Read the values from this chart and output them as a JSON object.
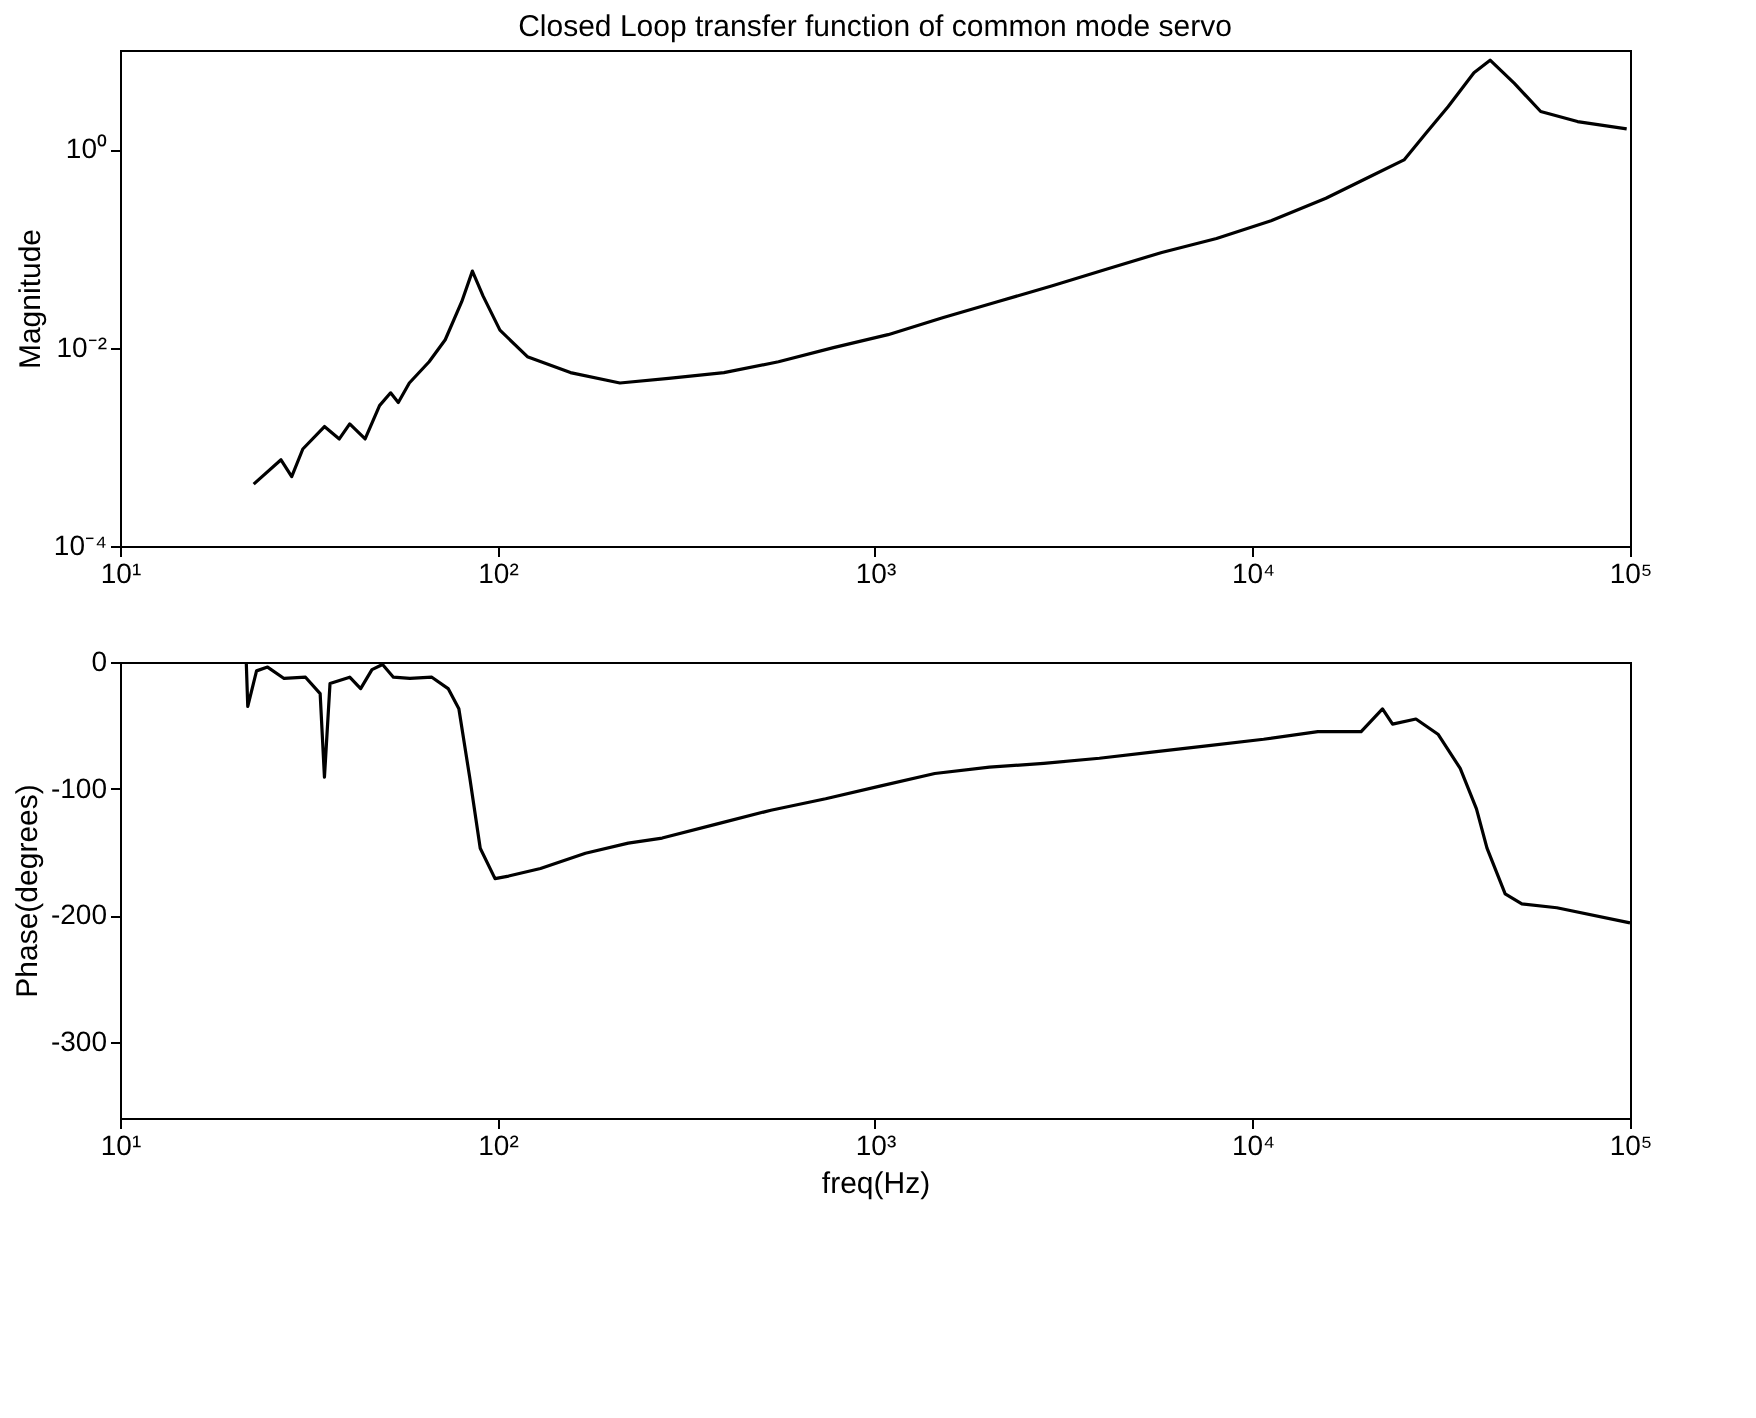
{
  "chart_data": [
    {
      "type": "line",
      "title": "Closed Loop transfer function of common mode servo",
      "ylabel": "Magnitude",
      "log": "xy",
      "grid": false,
      "marker": "none",
      "line_style": "solid",
      "xlim": [
        10,
        100000
      ],
      "xticks": [
        {
          "value": 10,
          "label": "10¹"
        },
        {
          "value": 100,
          "label": "10²"
        },
        {
          "value": 1000,
          "label": "10³"
        },
        {
          "value": 10000,
          "label": "10⁴"
        },
        {
          "value": 100000,
          "label": "10⁵"
        }
      ],
      "ylim": [
        0.0001,
        10
      ],
      "yticks": [
        {
          "value": 0.0001,
          "label": "10⁻⁴"
        },
        {
          "value": 0.01,
          "label": "10⁻²"
        },
        {
          "value": 1,
          "label": "10⁰"
        }
      ],
      "x": [
        22.6,
        26.7,
        28.5,
        30.5,
        34.8,
        38.1,
        40.6,
        44.6,
        48.7,
        52.1,
        54.6,
        58.4,
        65.9,
        72.7,
        80.4,
        85.8,
        91.6,
        101.5,
        120,
        156,
        211,
        284,
        398,
        555,
        776,
        1083,
        1510,
        2110,
        2950,
        4120,
        5750,
        8030,
        11200,
        15650,
        20500,
        25200,
        28800,
        33000,
        38600,
        42600,
        49400,
        58000,
        72600,
        98000
      ],
      "series": [
        {
          "color": "#000000",
          "values": [
            0.00042,
            0.00074,
            0.0005,
            0.00095,
            0.0016,
            0.0012,
            0.0017,
            0.0012,
            0.0026,
            0.0035,
            0.0028,
            0.0044,
            0.0072,
            0.012,
            0.029,
            0.059,
            0.033,
            0.015,
            0.0081,
            0.0056,
            0.0044,
            0.0049,
            0.0056,
            0.0072,
            0.01,
            0.0135,
            0.02,
            0.029,
            0.042,
            0.062,
            0.091,
            0.126,
            0.19,
            0.32,
            0.53,
            0.78,
            1.45,
            2.7,
            5.9,
            7.9,
            4.6,
            2.4,
            1.9,
            1.6
          ]
        }
      ]
    },
    {
      "type": "line",
      "xlabel": "freq(Hz)",
      "ylabel": "Phase(degrees)",
      "log": "x",
      "grid": false,
      "marker": "none",
      "line_style": "solid",
      "xlim": [
        10,
        100000
      ],
      "xticks": [
        {
          "value": 10,
          "label": "10¹"
        },
        {
          "value": 100,
          "label": "10²"
        },
        {
          "value": 1000,
          "label": "10³"
        },
        {
          "value": 10000,
          "label": "10⁴"
        },
        {
          "value": 100000,
          "label": "10⁵"
        }
      ],
      "ylim": [
        -360,
        0
      ],
      "yticks": [
        0,
        -100,
        -200,
        -300
      ],
      "x": [
        21.6,
        21.8,
        23,
        24.6,
        27.2,
        31,
        33.9,
        34.8,
        36,
        40.6,
        43.4,
        46.5,
        49.6,
        53,
        58.6,
        67,
        74,
        79,
        84.5,
        90,
        98.5,
        107,
        130,
        171,
        222,
        273,
        380,
        530,
        740,
        1030,
        1440,
        2010,
        2800,
        3930,
        5490,
        7660,
        10700,
        14900,
        19400,
        22100,
        23500,
        27100,
        31000,
        35500,
        39200,
        41800,
        46700,
        51700,
        64000,
        100000
      ],
      "series": [
        {
          "color": "#000000",
          "values": [
            0,
            -35,
            -7,
            -4,
            -13,
            -12,
            -25,
            -91,
            -17,
            -12,
            -21,
            -6,
            -2,
            -12,
            -13,
            -12,
            -21,
            -37,
            -92,
            -147,
            -171,
            -169,
            -163,
            -151,
            -143,
            -139,
            -128,
            -117,
            -108,
            -98,
            -88,
            -83,
            -80,
            -76,
            -71,
            -66,
            -61,
            -55,
            -55,
            -37,
            -49,
            -45,
            -57,
            -84,
            -116,
            -147,
            -183,
            -191,
            -194,
            -206
          ]
        }
      ]
    }
  ]
}
